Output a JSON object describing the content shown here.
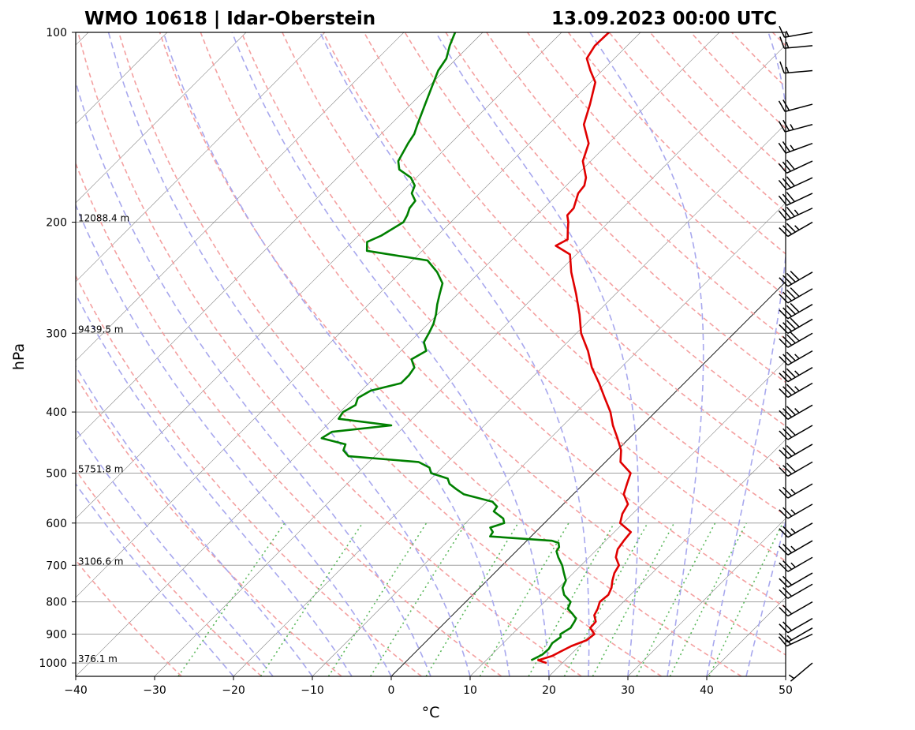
{
  "chart_data": {
    "type": "line",
    "title_left": "WMO 10618 | Idar-Oberstein",
    "title_right": "13.09.2023 00:00 UTC",
    "xlabel": "°C",
    "ylabel": "hPa",
    "xlim": [
      -40,
      50
    ],
    "ylim": [
      1050,
      100
    ],
    "y_scale": "log",
    "skew": true,
    "x_ticks": [
      "−40",
      "−30",
      "−20",
      "−10",
      "0",
      "10",
      "20",
      "30",
      "40",
      "50"
    ],
    "x_tick_values": [
      -40,
      -30,
      -20,
      -10,
      0,
      10,
      20,
      30,
      40,
      50
    ],
    "y_ticks": [
      "100",
      "200",
      "300",
      "400",
      "500",
      "600",
      "700",
      "800",
      "900",
      "1000"
    ],
    "y_tick_values": [
      100,
      200,
      300,
      400,
      500,
      600,
      700,
      800,
      900,
      1000
    ],
    "grid": true,
    "height_labels": [
      {
        "p": 200,
        "text": "12088.4 m"
      },
      {
        "p": 300,
        "text": "9439.5 m"
      },
      {
        "p": 500,
        "text": "5751.8 m"
      },
      {
        "p": 700,
        "text": "3106.6 m"
      },
      {
        "p": 1000,
        "text": "376.1 m"
      }
    ],
    "series": [
      {
        "color": "#e00000",
        "points": [
          [
            1000,
            18.0
          ],
          [
            990,
            16.6
          ],
          [
            975,
            17.8
          ],
          [
            960,
            18.3
          ],
          [
            940,
            19.0
          ],
          [
            920,
            20.2
          ],
          [
            900,
            20.4
          ],
          [
            880,
            19.1
          ],
          [
            860,
            19.0
          ],
          [
            840,
            18.0
          ],
          [
            820,
            17.6
          ],
          [
            800,
            17.0
          ],
          [
            780,
            17.2
          ],
          [
            760,
            16.7
          ],
          [
            740,
            15.9
          ],
          [
            720,
            15.2
          ],
          [
            700,
            14.8
          ],
          [
            680,
            13.4
          ],
          [
            660,
            12.6
          ],
          [
            640,
            12.3
          ],
          [
            620,
            12.1
          ],
          [
            600,
            9.6
          ],
          [
            580,
            8.7
          ],
          [
            560,
            8.2
          ],
          [
            540,
            6.4
          ],
          [
            520,
            5.5
          ],
          [
            500,
            4.6
          ],
          [
            480,
            1.9
          ],
          [
            460,
            0.5
          ],
          [
            440,
            -1.5
          ],
          [
            420,
            -3.7
          ],
          [
            400,
            -5.7
          ],
          [
            380,
            -8.2
          ],
          [
            360,
            -10.8
          ],
          [
            340,
            -13.7
          ],
          [
            320,
            -16.3
          ],
          [
            300,
            -19.4
          ],
          [
            280,
            -22.0
          ],
          [
            260,
            -25.0
          ],
          [
            240,
            -28.4
          ],
          [
            225,
            -30.8
          ],
          [
            218,
            -33.7
          ],
          [
            213,
            -33.0
          ],
          [
            205,
            -34.3
          ],
          [
            200,
            -35.1
          ],
          [
            195,
            -36.1
          ],
          [
            190,
            -36.2
          ],
          [
            180,
            -37.5
          ],
          [
            175,
            -37.7
          ],
          [
            170,
            -38.5
          ],
          [
            160,
            -41.0
          ],
          [
            150,
            -42.5
          ],
          [
            140,
            -45.5
          ],
          [
            130,
            -47.3
          ],
          [
            120,
            -49.4
          ],
          [
            115,
            -51.5
          ],
          [
            110,
            -53.5
          ],
          [
            105,
            -54.1
          ],
          [
            100,
            -54.0
          ]
        ]
      },
      {
        "color": "#008000",
        "points": [
          [
            990,
            15.7
          ],
          [
            970,
            16.4
          ],
          [
            950,
            16.5
          ],
          [
            930,
            16.2
          ],
          [
            910,
            16.5
          ],
          [
            900,
            16.1
          ],
          [
            880,
            16.6
          ],
          [
            860,
            16.3
          ],
          [
            850,
            16.1
          ],
          [
            835,
            15.0
          ],
          [
            820,
            13.8
          ],
          [
            800,
            13.3
          ],
          [
            780,
            11.6
          ],
          [
            760,
            10.5
          ],
          [
            740,
            10.0
          ],
          [
            720,
            8.8
          ],
          [
            700,
            7.6
          ],
          [
            680,
            6.1
          ],
          [
            665,
            5.1
          ],
          [
            655,
            4.9
          ],
          [
            645,
            4.3
          ],
          [
            640,
            3.2
          ],
          [
            630,
            -5.2
          ],
          [
            620,
            -5.4
          ],
          [
            610,
            -6.3
          ],
          [
            600,
            -5.1
          ],
          [
            590,
            -5.8
          ],
          [
            575,
            -7.9
          ],
          [
            565,
            -8.1
          ],
          [
            555,
            -9.3
          ],
          [
            540,
            -13.9
          ],
          [
            530,
            -15.5
          ],
          [
            520,
            -17.0
          ],
          [
            510,
            -17.9
          ],
          [
            500,
            -20.7
          ],
          [
            490,
            -21.6
          ],
          [
            480,
            -23.7
          ],
          [
            470,
            -33.3
          ],
          [
            460,
            -34.7
          ],
          [
            450,
            -35.2
          ],
          [
            440,
            -39.0
          ],
          [
            430,
            -38.5
          ],
          [
            420,
            -31.8
          ],
          [
            410,
            -39.3
          ],
          [
            400,
            -39.6
          ],
          [
            390,
            -38.9
          ],
          [
            380,
            -39.5
          ],
          [
            370,
            -38.8
          ],
          [
            360,
            -35.9
          ],
          [
            350,
            -35.9
          ],
          [
            340,
            -36.2
          ],
          [
            330,
            -37.6
          ],
          [
            320,
            -36.8
          ],
          [
            310,
            -38.2
          ],
          [
            300,
            -38.7
          ],
          [
            290,
            -39.3
          ],
          [
            280,
            -40.2
          ],
          [
            270,
            -41.3
          ],
          [
            260,
            -42.3
          ],
          [
            250,
            -43.3
          ],
          [
            240,
            -45.4
          ],
          [
            230,
            -48.1
          ],
          [
            222,
            -57.0
          ],
          [
            215,
            -58.1
          ],
          [
            210,
            -57.1
          ],
          [
            200,
            -56.0
          ],
          [
            195,
            -56.4
          ],
          [
            190,
            -57.0
          ],
          [
            185,
            -57.2
          ],
          [
            180,
            -58.6
          ],
          [
            175,
            -59.2
          ],
          [
            170,
            -60.7
          ],
          [
            165,
            -63.2
          ],
          [
            160,
            -64.4
          ],
          [
            150,
            -65.4
          ],
          [
            145,
            -65.8
          ],
          [
            140,
            -66.6
          ],
          [
            130,
            -68.2
          ],
          [
            120,
            -69.9
          ],
          [
            115,
            -70.8
          ],
          [
            110,
            -71.3
          ],
          [
            105,
            -72.5
          ],
          [
            100,
            -73.5
          ]
        ]
      }
    ],
    "barbs": [
      {
        "p": 1000,
        "dir": 230,
        "spd": 5
      },
      {
        "p": 900,
        "dir": 245,
        "spd": 15
      },
      {
        "p": 880,
        "dir": 240,
        "spd": 15
      },
      {
        "p": 850,
        "dir": 240,
        "spd": 20
      },
      {
        "p": 800,
        "dir": 240,
        "spd": 20
      },
      {
        "p": 750,
        "dir": 240,
        "spd": 20
      },
      {
        "p": 720,
        "dir": 240,
        "spd": 20
      },
      {
        "p": 680,
        "dir": 240,
        "spd": 25
      },
      {
        "p": 640,
        "dir": 240,
        "spd": 25
      },
      {
        "p": 600,
        "dir": 240,
        "spd": 25
      },
      {
        "p": 560,
        "dir": 240,
        "spd": 25
      },
      {
        "p": 520,
        "dir": 240,
        "spd": 25
      },
      {
        "p": 480,
        "dir": 240,
        "spd": 30
      },
      {
        "p": 450,
        "dir": 240,
        "spd": 30
      },
      {
        "p": 420,
        "dir": 240,
        "spd": 30
      },
      {
        "p": 390,
        "dir": 240,
        "spd": 35
      },
      {
        "p": 360,
        "dir": 240,
        "spd": 35
      },
      {
        "p": 340,
        "dir": 240,
        "spd": 35
      },
      {
        "p": 320,
        "dir": 240,
        "spd": 35
      },
      {
        "p": 300,
        "dir": 240,
        "spd": 40
      },
      {
        "p": 285,
        "dir": 240,
        "spd": 40
      },
      {
        "p": 270,
        "dir": 240,
        "spd": 40
      },
      {
        "p": 255,
        "dir": 240,
        "spd": 40
      },
      {
        "p": 240,
        "dir": 240,
        "spd": 40
      },
      {
        "p": 200,
        "dir": 240,
        "spd": 35
      },
      {
        "p": 190,
        "dir": 245,
        "spd": 35
      },
      {
        "p": 180,
        "dir": 245,
        "spd": 30
      },
      {
        "p": 170,
        "dir": 245,
        "spd": 30
      },
      {
        "p": 160,
        "dir": 245,
        "spd": 30
      },
      {
        "p": 150,
        "dir": 250,
        "spd": 25
      },
      {
        "p": 140,
        "dir": 255,
        "spd": 25
      },
      {
        "p": 130,
        "dir": 255,
        "spd": 20
      },
      {
        "p": 115,
        "dir": 265,
        "spd": 15
      },
      {
        "p": 105,
        "dir": 265,
        "spd": 15
      },
      {
        "p": 100,
        "dir": 260,
        "spd": 15
      }
    ],
    "colors": {
      "temperature": "#e00000",
      "dewpoint": "#008000",
      "dry_adiabats": "#f4a0a0",
      "moist_adiabats": "#a8a8ee",
      "mixing_ratio": "#5cb85c",
      "isotherms": "#808080",
      "isobars": "#a0a0a0"
    }
  }
}
